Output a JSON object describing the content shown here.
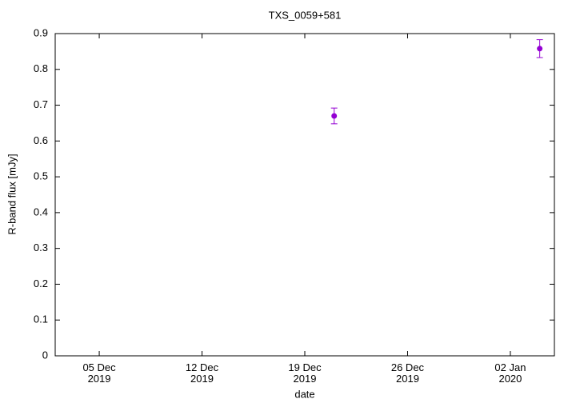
{
  "chart_data": {
    "type": "scatter",
    "title": "TXS_0059+581",
    "x_label": "date",
    "y_label": "R-band flux [mJy]",
    "series": [
      {
        "color": "#9400d3",
        "x": [
          "2019-12-21",
          "2020-01-04"
        ],
        "values": [
          0.67,
          0.858
        ],
        "errors": [
          0.022,
          0.025
        ]
      }
    ],
    "xlim": [
      "2019-12-02",
      "2020-01-05"
    ],
    "xticks": [
      {
        "value": "2019-12-05",
        "label": "05 Dec\n2019"
      },
      {
        "value": "2019-12-12",
        "label": "12 Dec\n2019"
      },
      {
        "value": "2019-12-19",
        "label": "19 Dec\n2019"
      },
      {
        "value": "2019-12-26",
        "label": "26 Dec\n2019"
      },
      {
        "value": "2020-01-02",
        "label": "02 Jan\n2020"
      }
    ],
    "ylim": [
      0,
      0.9
    ],
    "yticks": [
      0,
      0.1,
      0.2,
      0.3,
      0.4,
      0.5,
      0.6,
      0.7,
      0.8,
      0.9
    ],
    "grid": false
  }
}
